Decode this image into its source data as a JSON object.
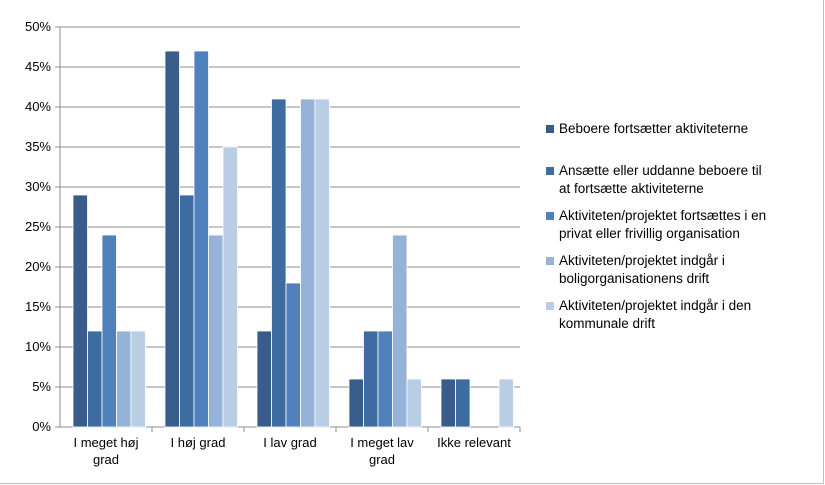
{
  "chart_data": {
    "type": "bar",
    "categories": [
      [
        "I meget høj",
        "grad"
      ],
      [
        "I høj grad"
      ],
      [
        "I lav grad"
      ],
      [
        "I meget lav",
        "grad"
      ],
      [
        "Ikke relevant"
      ]
    ],
    "y_ticks": [
      "0%",
      "5%",
      "10%",
      "15%",
      "20%",
      "25%",
      "30%",
      "35%",
      "40%",
      "45%",
      "50%"
    ],
    "ylim": [
      0,
      50
    ],
    "grid": true,
    "legend_position": "right",
    "series": [
      {
        "name": "Beboere fortsætter aktiviteterne",
        "color": "#385d8a",
        "values": [
          29,
          47,
          12,
          6,
          6
        ]
      },
      {
        "name": "Ansætte eller uddanne beboere til at fortsætte aktiviteterne",
        "color": "#3e6ba0",
        "values": [
          12,
          29,
          41,
          12,
          6
        ]
      },
      {
        "name": "Aktiviteten/projektet fortsættes i en privat eller frivillig organisation",
        "color": "#4f81bd",
        "values": [
          24,
          47,
          18,
          12,
          0
        ]
      },
      {
        "name": "Aktiviteten/projektet indgår i boligorganisationens drift",
        "color": "#95b3d7",
        "values": [
          12,
          24,
          41,
          24,
          0
        ]
      },
      {
        "name": "Aktiviteten/projektet indgår i den kommunale drift",
        "color": "#b9cde5",
        "values": [
          12,
          35,
          41,
          6,
          6
        ]
      }
    ],
    "legend_lines": [
      [
        "Beboere fortsætter aktiviteterne"
      ],
      [
        "Ansætte eller uddanne beboere til",
        "at fortsætte aktiviteterne"
      ],
      [
        "Aktiviteten/projektet fortsættes i en",
        "privat eller frivillig organisation"
      ],
      [
        "Aktiviteten/projektet indgår i",
        "boligorganisationens drift"
      ],
      [
        "Aktiviteten/projektet indgår i den",
        "kommunale drift"
      ]
    ]
  }
}
